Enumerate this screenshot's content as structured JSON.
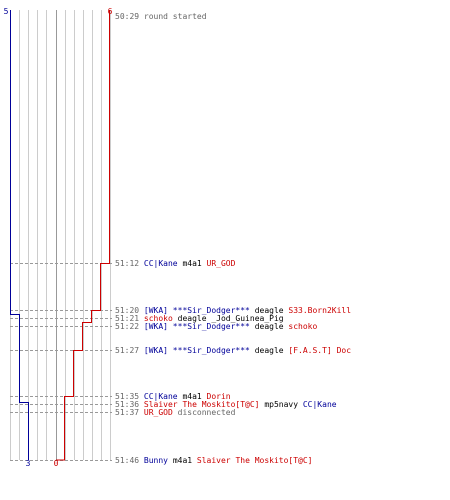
{
  "colors": {
    "team_a": "#000099",
    "team_b": "#cc0000",
    "text": "#000000",
    "time": "#666666",
    "grid": "#cccccc",
    "grid_dark": "#999999",
    "dash": "#999999"
  },
  "scores": {
    "team_a_start": "5",
    "team_b_start": "6",
    "team_a_end": "3",
    "team_b_end": "0"
  },
  "events": [
    {
      "time": "50:29",
      "parts": [
        {
          "text": "round started",
          "team": "system"
        }
      ]
    },
    {
      "time": "51:12",
      "parts": [
        {
          "text": "CC|Kane",
          "team": "a"
        },
        {
          "text": " m4a1 ",
          "team": "text"
        },
        {
          "text": "UR_GOD",
          "team": "b"
        }
      ]
    },
    {
      "time": "51:20",
      "parts": [
        {
          "text": "[WKA] ***Sir_Dodger***",
          "team": "a"
        },
        {
          "text": " deagle ",
          "team": "text"
        },
        {
          "text": "S33.Born2Kill",
          "team": "b"
        }
      ]
    },
    {
      "time": "51:21",
      "parts": [
        {
          "text": "schoko",
          "team": "b"
        },
        {
          "text": " deagle ",
          "team": "text"
        },
        {
          "text": "_Jod_Guinea_Pig",
          "team": "text"
        }
      ]
    },
    {
      "time": "51:22",
      "parts": [
        {
          "text": "[WKA] ***Sir_Dodger***",
          "team": "a"
        },
        {
          "text": " deagle ",
          "team": "text"
        },
        {
          "text": "schoko",
          "team": "b"
        }
      ]
    },
    {
      "time": "51:27",
      "parts": [
        {
          "text": "[WKA] ***Sir_Dodger***",
          "team": "a"
        },
        {
          "text": " deagle ",
          "team": "text"
        },
        {
          "text": "[F.A.S.T] Doc",
          "team": "b"
        }
      ]
    },
    {
      "time": "51:35",
      "parts": [
        {
          "text": "CC|Kane",
          "team": "a"
        },
        {
          "text": " m4a1 ",
          "team": "text"
        },
        {
          "text": "Dorin",
          "team": "b"
        }
      ]
    },
    {
      "time": "51:36",
      "parts": [
        {
          "text": "Slaiver The Moskito[T@C]",
          "team": "b"
        },
        {
          "text": " mp5navy ",
          "team": "text"
        },
        {
          "text": "CC|Kane",
          "team": "a"
        }
      ]
    },
    {
      "time": "51:37",
      "parts": [
        {
          "text": "UR_GOD",
          "team": "b"
        },
        {
          "text": " disconnected",
          "team": "system"
        }
      ]
    },
    {
      "time": "51:46",
      "parts": [
        {
          "text": "Bunny",
          "team": "a"
        },
        {
          "text": " m4a1 ",
          "team": "text"
        },
        {
          "text": "Slaiver The Moskito[T@C]",
          "team": "b"
        }
      ]
    }
  ]
}
